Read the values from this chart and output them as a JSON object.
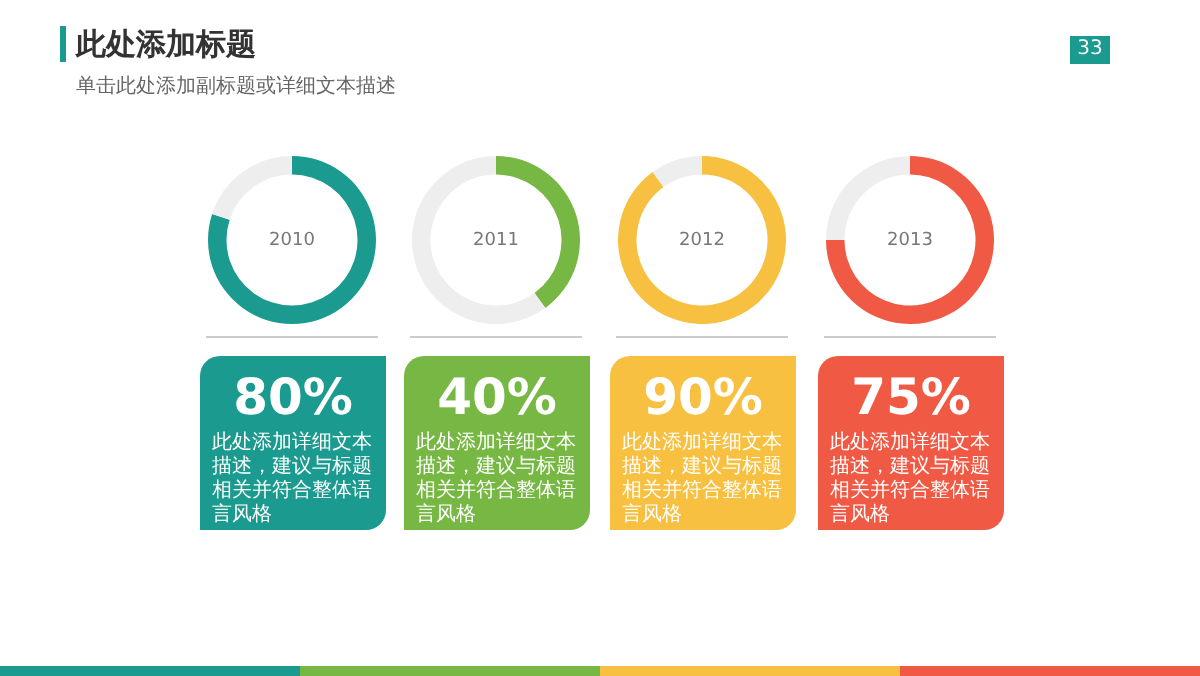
{
  "chart_data": [
    {
      "type": "other",
      "title": "此处添加标题",
      "subtitle": "单击此处添加副标题或详细文本描述",
      "annotations": [
        "33"
      ]
    },
    {
      "type": "donut",
      "title": "2010",
      "categories": [
        null,
        null
      ],
      "values": [
        80,
        20
      ],
      "colors": [
        "#1b9a8f",
        "#eeeeee"
      ],
      "annotations": [
        "80%",
        "此处添加详细文本描述，建议与标题相关并符合整体语言风格"
      ]
    },
    {
      "type": "donut",
      "title": "2011",
      "categories": [
        null,
        null
      ],
      "values": [
        40,
        60
      ],
      "colors": [
        "#76b843",
        "#eeeeee"
      ],
      "annotations": [
        "40%",
        "此处添加详细文本描述，建议与标题相关并符合整体语言风格"
      ]
    },
    {
      "type": "donut",
      "title": "2012",
      "categories": [
        null,
        null
      ],
      "values": [
        90,
        10
      ],
      "colors": [
        "#f8c040",
        "#eeeeee"
      ],
      "annotations": [
        "90%",
        "此处添加详细文本描述，建议与标题相关并符合整体语言风格"
      ]
    },
    {
      "type": "donut",
      "title": "2013",
      "categories": [
        null,
        null
      ],
      "values": [
        75,
        25
      ],
      "colors": [
        "#f05a44",
        "#eeeeee"
      ],
      "annotations": [
        "75%",
        "此处添加详细文本描述，建议与标题相关并符合整体语言风格"
      ]
    }
  ]
}
